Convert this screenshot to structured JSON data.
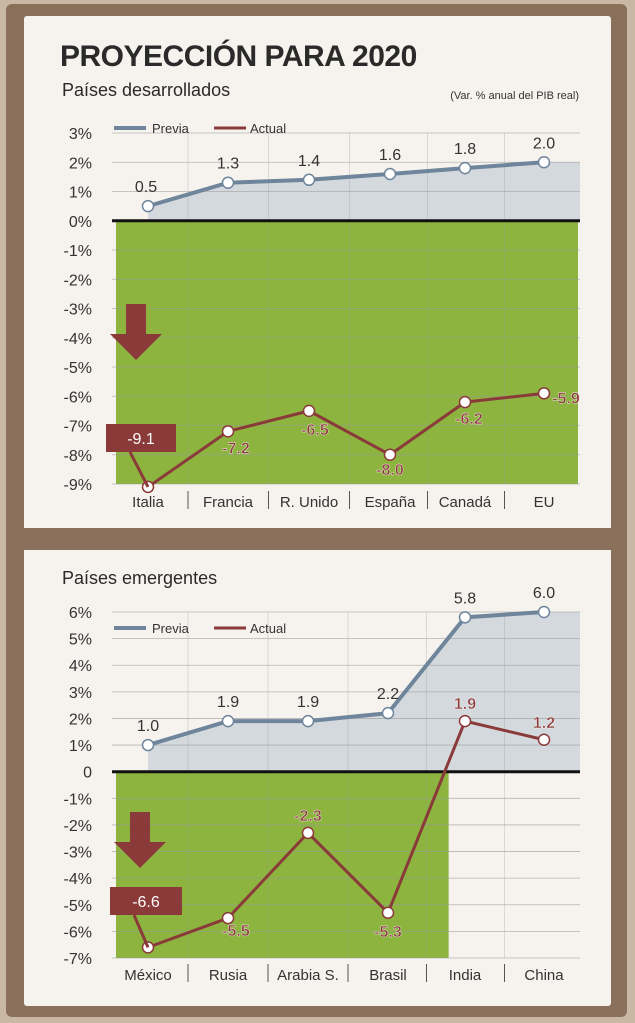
{
  "title": "PROYECCIÓN PARA 2020",
  "units_note": "(Var. % anual del PIB real)",
  "legend": {
    "previa": "Previa",
    "actual": "Actual"
  },
  "colors": {
    "previa": "#6f859b",
    "actual": "#8b3a3a",
    "negative_area": "#8cb43e",
    "positive_area": "#d4d9de",
    "label_box": "#8b3a3a"
  },
  "chart_data": [
    {
      "type": "line",
      "subtitle": "Países desarrollados",
      "categories": [
        "Italia",
        "Francia",
        "R. Unido",
        "España",
        "Canadá",
        "EU"
      ],
      "series": [
        {
          "name": "Previa",
          "values": [
            0.5,
            1.3,
            1.4,
            1.6,
            1.8,
            2.0
          ],
          "labels": [
            "0.5",
            "1.3",
            "1.4",
            "1.6",
            "1.8",
            "2.0"
          ]
        },
        {
          "name": "Actual",
          "values": [
            -9.1,
            -7.2,
            -6.5,
            -8.0,
            -6.2,
            -5.9
          ],
          "labels": [
            "-9.1",
            "-7.2",
            "-6.5",
            "-8.0",
            "-6.2",
            "-5.9"
          ]
        }
      ],
      "yticks": [
        "3%",
        "2%",
        "1%",
        "0%",
        "-1%",
        "-2%",
        "-3%",
        "-4%",
        "-5%",
        "-6%",
        "-7%",
        "-8%",
        "-9%"
      ],
      "ylim": [
        -9,
        3
      ],
      "grid": true
    },
    {
      "type": "line",
      "subtitle": "Países emergentes",
      "categories": [
        "México",
        "Rusia",
        "Arabia S.",
        "Brasil",
        "India",
        "China"
      ],
      "series": [
        {
          "name": "Previa",
          "values": [
            1.0,
            1.9,
            1.9,
            2.2,
            5.8,
            6.0
          ],
          "labels": [
            "1.0",
            "1.9",
            "1.9",
            "2.2",
            "5.8",
            "6.0"
          ]
        },
        {
          "name": "Actual",
          "values": [
            -6.6,
            -5.5,
            -2.3,
            -5.3,
            1.9,
            1.2
          ],
          "labels": [
            "-6.6",
            "-5.5",
            "-2.3",
            "-5.3",
            "1.9",
            "1.2"
          ]
        }
      ],
      "yticks": [
        "6%",
        "5%",
        "4%",
        "3%",
        "2%",
        "1%",
        "0",
        "-1%",
        "-2%",
        "-3%",
        "-4%",
        "-5%",
        "-6%",
        "-7%"
      ],
      "ylim": [
        -7,
        6
      ],
      "grid": true
    }
  ]
}
